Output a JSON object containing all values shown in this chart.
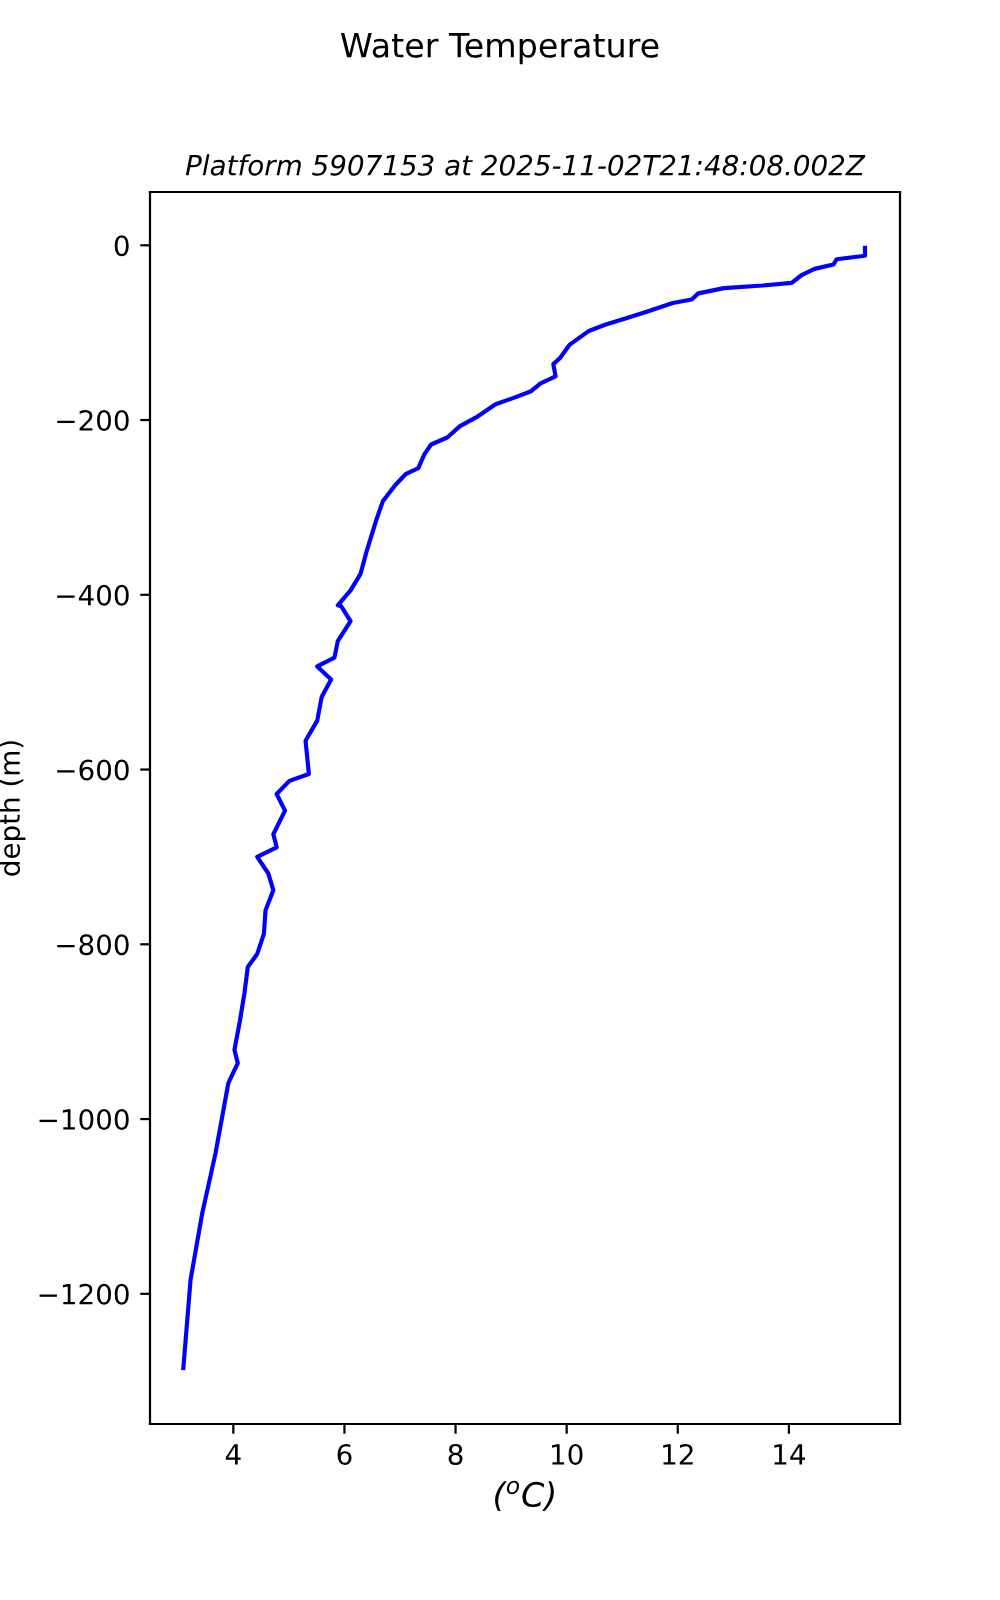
{
  "chart_data": {
    "type": "line",
    "title": "Water Temperature",
    "subtitle": "Platform 5907153 at 2025-11-02T21:48:08.002Z",
    "xlabel": "($^{o}$C)",
    "ylabel": "depth (m)",
    "series": [
      {
        "color": "#0000ff",
        "x": [
          15.37,
          15.37,
          14.86,
          14.8,
          14.46,
          14.23,
          14.05,
          13.53,
          12.83,
          12.37,
          12.25,
          11.91,
          11.44,
          11.1,
          10.69,
          10.4,
          10.05,
          9.88,
          9.76,
          9.8,
          9.53,
          9.36,
          9.07,
          8.72,
          8.37,
          8.08,
          7.85,
          7.56,
          7.44,
          7.33,
          7.1,
          6.92,
          6.69,
          6.57,
          6.4,
          6.29,
          6.11,
          5.88,
          5.94,
          6.11,
          5.88,
          5.82,
          5.51,
          5.76,
          5.59,
          5.51,
          5.3,
          5.36,
          5.01,
          4.78,
          4.93,
          4.72,
          4.78,
          4.43,
          4.63,
          4.72,
          4.58,
          4.55,
          4.43,
          4.26,
          4.2,
          4.12,
          4.02,
          4.08,
          3.91,
          3.68,
          3.44,
          3.23,
          3.1
        ],
        "values": [
          -3,
          -12,
          -16,
          -22,
          -27,
          -34,
          -43,
          -46,
          -49,
          -55,
          -62,
          -66,
          -76,
          -83,
          -91,
          -98,
          -114,
          -129,
          -136,
          -150,
          -158,
          -167,
          -174,
          -182,
          -197,
          -207,
          -220,
          -228,
          -239,
          -255,
          -262,
          -274,
          -293,
          -315,
          -350,
          -376,
          -395,
          -412,
          -413,
          -430,
          -453,
          -472,
          -482,
          -497,
          -517,
          -544,
          -567,
          -605,
          -613,
          -628,
          -647,
          -674,
          -689,
          -700,
          -719,
          -738,
          -761,
          -788,
          -811,
          -826,
          -856,
          -887,
          -921,
          -936,
          -959,
          -1039,
          -1108,
          -1184,
          -1285
        ]
      }
    ],
    "xlim": [
      2.5,
      16
    ],
    "xticks": [
      4,
      6,
      8,
      10,
      12,
      14
    ],
    "ylim": [
      -1349,
      61
    ],
    "yticks": [
      {
        "value": 0,
        "label": "0"
      },
      {
        "value": -200,
        "label": "−200"
      },
      {
        "value": -400,
        "label": "−400"
      },
      {
        "value": -600,
        "label": "−600"
      },
      {
        "value": -800,
        "label": "−800"
      },
      {
        "value": -1000,
        "label": "−1000"
      },
      {
        "value": -1200,
        "label": "−1200"
      }
    ],
    "grid": false,
    "legend": false,
    "line_style": "solid",
    "marker": "none"
  }
}
